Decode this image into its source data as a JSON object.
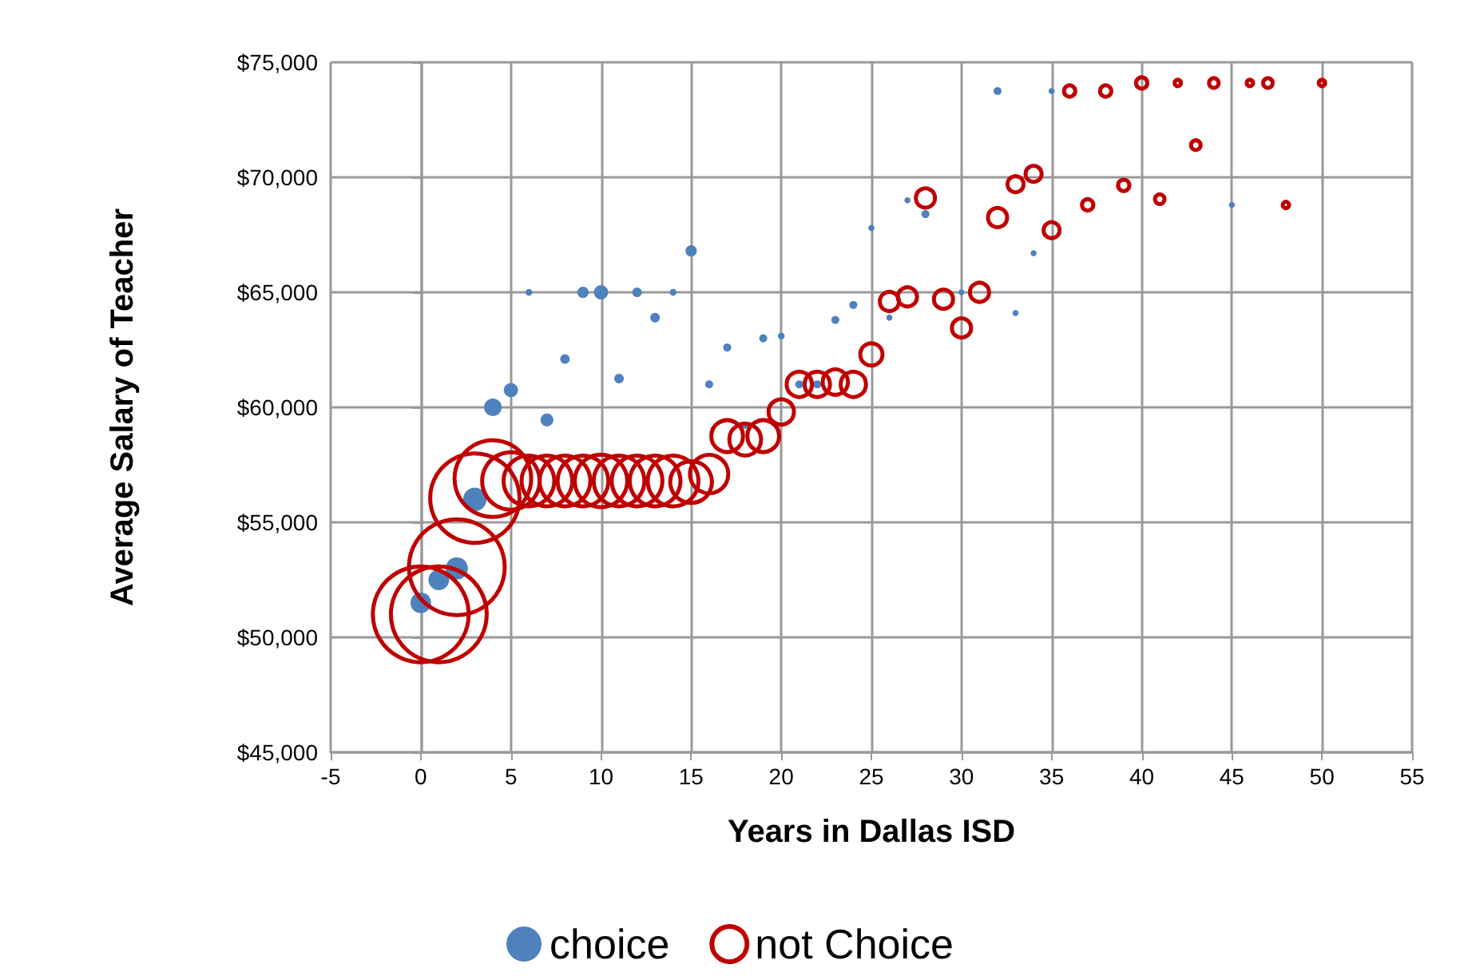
{
  "chart_data": {
    "type": "bubble",
    "xlabel": "Years in Dallas ISD",
    "ylabel": "Average Salary of Teacher",
    "xlim": [
      -5,
      55
    ],
    "xticks": [
      -5,
      0,
      5,
      10,
      15,
      20,
      25,
      30,
      35,
      40,
      45,
      50,
      55
    ],
    "ylim": [
      45000,
      75000
    ],
    "yticks": [
      {
        "value": 45000,
        "label": "$45,000"
      },
      {
        "value": 50000,
        "label": "$50,000"
      },
      {
        "value": 55000,
        "label": "$55,000"
      },
      {
        "value": 60000,
        "label": "$60,000"
      },
      {
        "value": 65000,
        "label": "$65,000"
      },
      {
        "value": 70000,
        "label": "$70,000"
      },
      {
        "value": 75000,
        "label": "$75,000"
      }
    ],
    "grid": true,
    "legend": "bottom",
    "marker": "circle",
    "series": [
      {
        "name": "choice",
        "type": "bubble",
        "color": "#4f81bd",
        "x": [
          0,
          1,
          2,
          3,
          4,
          5,
          6,
          7,
          8,
          9,
          10,
          11,
          12,
          13,
          14,
          15,
          16,
          17,
          18,
          19,
          20,
          21,
          22,
          23,
          24,
          25,
          26,
          27,
          28,
          30,
          32,
          33,
          34,
          35,
          45
        ],
        "values": [
          51500,
          52500,
          53000,
          56000,
          60000,
          60750,
          65000,
          59450,
          62100,
          65000,
          65000,
          61250,
          65000,
          63900,
          65000,
          66800,
          61000,
          62600,
          59200,
          63000,
          63100,
          61000,
          61000,
          63800,
          64450,
          67800,
          63900,
          69000,
          68400,
          65000,
          73750,
          64100,
          66700,
          73750,
          68800
        ],
        "sizes": [
          0.047,
          0.047,
          0.054,
          0.06,
          0.034,
          0.022,
          0.005,
          0.018,
          0.01,
          0.014,
          0.022,
          0.01,
          0.01,
          0.01,
          0.005,
          0.014,
          0.007,
          0.007,
          0.004,
          0.007,
          0.005,
          0.007,
          0.007,
          0.007,
          0.007,
          0.004,
          0.004,
          0.004,
          0.007,
          0.004,
          0.007,
          0.004,
          0.004,
          0.004,
          0.004
        ]
      },
      {
        "name": "not Choice",
        "type": "bubble",
        "color": "#c00000",
        "x": [
          0,
          1,
          2,
          3,
          4,
          5,
          6,
          7,
          8,
          9,
          10,
          11,
          12,
          13,
          14,
          15,
          16,
          17,
          18,
          19,
          20,
          21,
          22,
          23,
          24,
          25,
          26,
          27,
          28,
          29,
          30,
          31,
          32,
          33,
          34,
          35,
          36,
          37,
          38,
          39,
          40,
          41,
          42,
          43,
          44,
          46,
          47,
          48,
          50
        ],
        "values": [
          51000,
          51000,
          53050,
          56050,
          56900,
          56800,
          56800,
          56800,
          56800,
          56800,
          56800,
          56800,
          56800,
          56800,
          56800,
          56750,
          57100,
          58750,
          58600,
          58750,
          59800,
          61000,
          61000,
          61100,
          61000,
          62300,
          64600,
          64800,
          69100,
          64700,
          63450,
          65000,
          68250,
          69700,
          70150,
          67700,
          73750,
          68800,
          73750,
          69650,
          74100,
          69050,
          74100,
          71400,
          74100,
          74100,
          74100,
          68800,
          74100
        ],
        "sizes": [
          1,
          1,
          1,
          0.87,
          0.64,
          0.36,
          0.28,
          0.28,
          0.28,
          0.28,
          0.3,
          0.28,
          0.28,
          0.28,
          0.28,
          0.19,
          0.16,
          0.11,
          0.11,
          0.11,
          0.07,
          0.07,
          0.07,
          0.07,
          0.07,
          0.054,
          0.04,
          0.04,
          0.04,
          0.04,
          0.04,
          0.04,
          0.04,
          0.028,
          0.028,
          0.028,
          0.014,
          0.014,
          0.014,
          0.014,
          0.014,
          0.01,
          0.0044,
          0.01,
          0.01,
          0.0044,
          0.01,
          0.0044,
          0.0044
        ]
      }
    ]
  }
}
